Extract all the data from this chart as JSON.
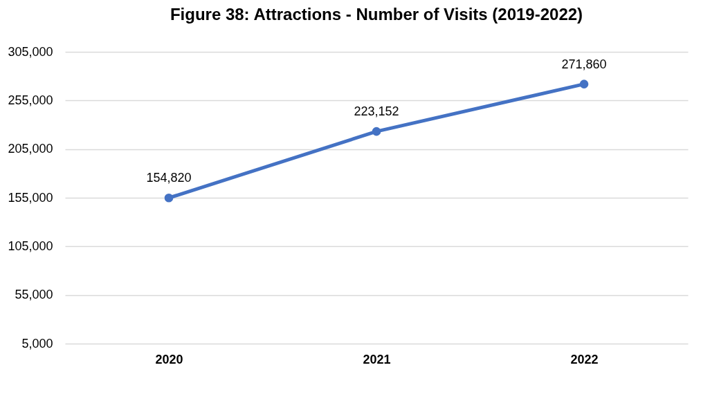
{
  "chart_data": {
    "type": "line",
    "title": "Figure 38: Attractions - Number of Visits (2019-2022)",
    "categories": [
      "2020",
      "2021",
      "2022"
    ],
    "values": [
      154820,
      223152,
      271860
    ],
    "value_labels": [
      "154,820",
      "223,152",
      "271,860"
    ],
    "color": "#4472c4",
    "ylim": [
      5000,
      305000
    ],
    "yticks": [
      {
        "value": 5000,
        "label": "5,000"
      },
      {
        "value": 55000,
        "label": "55,000"
      },
      {
        "value": 105000,
        "label": "105,000"
      },
      {
        "value": 155000,
        "label": "155,000"
      },
      {
        "value": 205000,
        "label": "205,000"
      },
      {
        "value": 255000,
        "label": "255,000"
      },
      {
        "value": 305000,
        "label": "305,000"
      }
    ],
    "grid": "y",
    "marker": "circle",
    "line_style": "solid"
  }
}
